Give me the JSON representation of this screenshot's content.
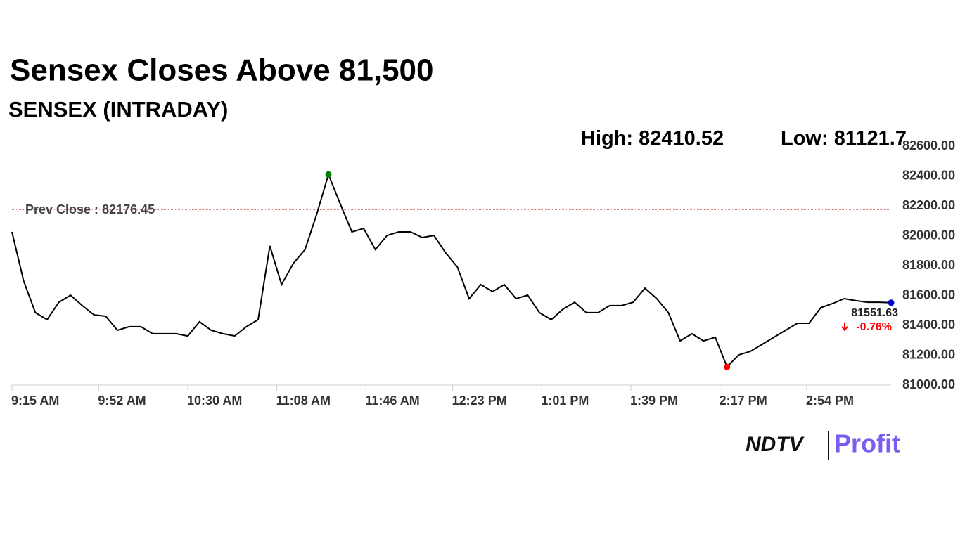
{
  "chart_data": {
    "type": "line",
    "title": "Sensex Closes Above 81,500",
    "subtitle": "SENSEX (INTRADAY)",
    "high_label": "High:",
    "high": 82410.52,
    "low_label": "Low:",
    "low": 81121.7,
    "prev_close_label": "Prev Close :",
    "prev_close": 82176.45,
    "change": {
      "value": -0.76,
      "label": "-0.76%"
    },
    "x": [
      "9:15 AM",
      "9:20 AM",
      "9:25 AM",
      "9:30 AM",
      "9:35 AM",
      "9:40 AM",
      "9:45 AM",
      "9:50 AM",
      "9:55 AM",
      "10:00 AM",
      "10:05 AM",
      "10:10 AM",
      "10:15 AM",
      "10:20 AM",
      "10:25 AM",
      "10:30 AM",
      "10:35 AM",
      "10:40 AM",
      "10:45 AM",
      "10:50 AM",
      "10:55 AM",
      "11:00 AM",
      "11:05 AM",
      "11:10 AM",
      "11:15 AM",
      "11:20 AM",
      "11:25 AM",
      "11:30 AM",
      "11:35 AM",
      "11:40 AM",
      "11:45 AM",
      "11:50 AM",
      "11:55 AM",
      "12:00 PM",
      "12:05 PM",
      "12:10 PM",
      "12:15 PM",
      "12:20 PM",
      "12:25 PM",
      "12:30 PM",
      "12:35 PM",
      "12:40 PM",
      "12:45 PM",
      "12:50 PM",
      "12:55 PM",
      "1:00 PM",
      "1:05 PM",
      "1:10 PM",
      "1:15 PM",
      "1:20 PM",
      "1:25 PM",
      "1:30 PM",
      "1:35 PM",
      "1:40 PM",
      "1:45 PM",
      "1:50 PM",
      "1:55 PM",
      "2:00 PM",
      "2:05 PM",
      "2:10 PM",
      "2:15 PM",
      "2:20 PM",
      "2:25 PM",
      "2:30 PM",
      "2:35 PM",
      "2:40 PM",
      "2:45 PM",
      "2:50 PM",
      "2:55 PM",
      "3:00 PM",
      "3:05 PM",
      "3:10 PM",
      "3:15 PM",
      "3:20 PM",
      "3:25 PM",
      "3:30 PM"
    ],
    "series": [
      {
        "name": "SENSEX",
        "color": "#000000",
        "values": [
          82026,
          81696,
          81485,
          81438,
          81555,
          81602,
          81532,
          81470,
          81461,
          81367,
          81391,
          81391,
          81344,
          81344,
          81344,
          81329,
          81424,
          81367,
          81344,
          81329,
          81391,
          81438,
          81932,
          81673,
          81814,
          81908,
          82144,
          82410.52,
          82214,
          82026,
          82049,
          81908,
          82002,
          82026,
          82026,
          81988,
          82002,
          81885,
          81791,
          81579,
          81673,
          81626,
          81673,
          81579,
          81602,
          81485,
          81438,
          81508,
          81555,
          81485,
          81485,
          81532,
          81532,
          81555,
          81649,
          81579,
          81485,
          81296,
          81344,
          81296,
          81320,
          81121.7,
          81202,
          81226,
          81273,
          81320,
          81367,
          81414,
          81414,
          81518,
          81546,
          81579,
          81565,
          81555,
          81555,
          81551.63
        ]
      }
    ],
    "xlim": [
      "9:15 AM",
      "3:30 PM"
    ],
    "xticks": [
      "9:15 AM",
      "9:52 AM",
      "10:30 AM",
      "11:08 AM",
      "11:46 AM",
      "12:23 PM",
      "1:01 PM",
      "1:39 PM",
      "2:17 PM",
      "2:54 PM"
    ],
    "ylim": [
      81000,
      82600
    ],
    "yticks": [
      {
        "value": 81000,
        "label": "81000.00"
      },
      {
        "value": 81200,
        "label": "81200.00"
      },
      {
        "value": 81400,
        "label": "81400.00"
      },
      {
        "value": 81600,
        "label": "81600.00"
      },
      {
        "value": 81800,
        "label": "81800.00"
      },
      {
        "value": 82000,
        "label": "82000.00"
      },
      {
        "value": 82200,
        "label": "82200.00"
      },
      {
        "value": 82400,
        "label": "82400.00"
      },
      {
        "value": 82600,
        "label": "82600.00"
      }
    ],
    "grid": false,
    "high_color": "#008000",
    "low_color": "#ff0000",
    "last_color": "#0000cc",
    "prev_close_color": "#cc0000",
    "logo": {
      "brand": "NDTV",
      "product": "Profit"
    }
  }
}
